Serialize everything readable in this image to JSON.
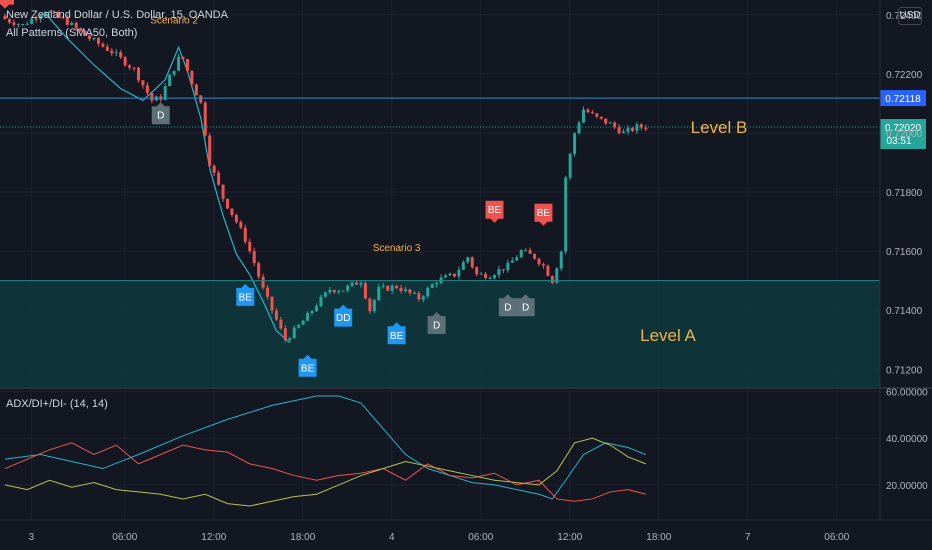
{
  "header": {
    "symbol": "New Zealand Dollar / U.S. Dollar, 15, OANDA",
    "indicator": "All Patterns (SMA50, Both)",
    "currency_button": "USD",
    "adx_label": "ADX/DI+/DI- (14, 14)"
  },
  "colors": {
    "background": "#131722",
    "up": "#26a69a",
    "down": "#ef5350",
    "zone": "#0e3a3e",
    "level_line": "#2a8fd4",
    "level_text": "#f0b44c",
    "bullish_marker": "#2196f3",
    "bearish_marker": "#ef5350",
    "doji_marker": "#5d7078"
  },
  "chart_data": [
    {
      "type": "candlestick",
      "title": "New Zealand Dollar / U.S. Dollar, 15, OANDA",
      "x_ticks": [
        "3",
        "06:00",
        "12:00",
        "18:00",
        "4",
        "06:00",
        "12:00",
        "18:00",
        "7",
        "06:00"
      ],
      "y_ticks": [
        "0.72400",
        "0.72200",
        "0.72000",
        "0.71800",
        "0.71600",
        "0.71400",
        "0.71200"
      ],
      "ylim": [
        0.7114,
        0.7245
      ],
      "grid": true,
      "path": [
        [
          0,
          0.72385
        ],
        [
          4,
          0.72365
        ],
        [
          9,
          0.72415
        ],
        [
          14,
          0.72375
        ],
        [
          19,
          0.7232
        ],
        [
          24,
          0.72275
        ],
        [
          29,
          0.72215
        ],
        [
          33,
          0.7211
        ],
        [
          35,
          0.7212
        ],
        [
          37,
          0.7219
        ],
        [
          39,
          0.7225
        ],
        [
          40,
          0.7225
        ],
        [
          42,
          0.7217
        ],
        [
          44,
          0.721
        ],
        [
          46,
          0.719
        ],
        [
          49,
          0.7178
        ],
        [
          52,
          0.717
        ],
        [
          54,
          0.7164
        ],
        [
          56,
          0.7156
        ],
        [
          58,
          0.7147
        ],
        [
          60,
          0.714
        ],
        [
          63,
          0.713
        ],
        [
          65,
          0.7133
        ],
        [
          68,
          0.7138
        ],
        [
          70,
          0.7142
        ],
        [
          73,
          0.7147
        ],
        [
          76,
          0.7147
        ],
        [
          80,
          0.715
        ],
        [
          82,
          0.714
        ],
        [
          84,
          0.7147
        ],
        [
          88,
          0.7148
        ],
        [
          93,
          0.7144
        ],
        [
          97,
          0.715
        ],
        [
          101,
          0.7152
        ],
        [
          104,
          0.7158
        ],
        [
          106,
          0.7152
        ],
        [
          109,
          0.7152
        ],
        [
          113,
          0.7155
        ],
        [
          116,
          0.716
        ],
        [
          119,
          0.7158
        ],
        [
          121,
          0.7155
        ],
        [
          123,
          0.715
        ],
        [
          125,
          0.716
        ],
        [
          126,
          0.7185
        ],
        [
          128,
          0.72
        ],
        [
          130,
          0.7208
        ],
        [
          133,
          0.7205
        ],
        [
          136,
          0.7203
        ],
        [
          139,
          0.72
        ],
        [
          142,
          0.7202
        ],
        [
          144,
          0.7202
        ]
      ],
      "sma_line": [
        [
          9,
          0.72405
        ],
        [
          14,
          0.7232
        ],
        [
          20,
          0.7223
        ],
        [
          26,
          0.7215
        ],
        [
          31,
          0.7211
        ],
        [
          36,
          0.7218
        ],
        [
          39,
          0.7229
        ],
        [
          41,
          0.7221
        ],
        [
          44,
          0.7205
        ],
        [
          46,
          0.7188
        ],
        [
          49,
          0.7172
        ],
        [
          52,
          0.7159
        ],
        [
          55,
          0.7152
        ],
        [
          58,
          0.7143
        ],
        [
          61,
          0.7133
        ],
        [
          64,
          0.7129
        ]
      ],
      "levels": [
        {
          "label": "Level B",
          "price": 0.72118,
          "price_label": "0.72118"
        }
      ],
      "zone": {
        "label": "Level A",
        "from": 0.7114,
        "to": 0.715
      },
      "current": {
        "price_label": "0.72020",
        "countdown": "03:51",
        "price": 0.7202
      },
      "annotations": [
        {
          "text": "Scenario 2",
          "x": 38,
          "y": 0.7237
        },
        {
          "text": "Scenario 3",
          "x": 88,
          "y": 0.716
        }
      ],
      "markers": [
        {
          "text": "E",
          "kind": "bearish",
          "x": 0,
          "y": 0.72465
        },
        {
          "text": "D",
          "kind": "doji",
          "x": 35,
          "y": 0.7206
        },
        {
          "text": "BE",
          "kind": "bullish",
          "x": 54,
          "y": 0.71445
        },
        {
          "text": "BE",
          "kind": "bullish",
          "x": 68,
          "y": 0.71205
        },
        {
          "text": "DD",
          "kind": "bullish",
          "x": 76,
          "y": 0.71375
        },
        {
          "text": "BE",
          "kind": "bullish",
          "x": 88,
          "y": 0.71315
        },
        {
          "text": "D",
          "kind": "doji",
          "x": 97,
          "y": 0.7135
        },
        {
          "text": "D",
          "kind": "doji",
          "x": 113,
          "y": 0.7141
        },
        {
          "text": "D",
          "kind": "doji",
          "x": 117,
          "y": 0.7141
        },
        {
          "text": "BE",
          "kind": "bearish",
          "x": 110,
          "y": 0.7174
        },
        {
          "text": "BE",
          "kind": "bearish",
          "x": 121,
          "y": 0.7173
        }
      ]
    },
    {
      "type": "line",
      "title": "ADX/DI+/DI- (14, 14)",
      "y_ticks": [
        "60.00000",
        "40.00000",
        "20.00000"
      ],
      "ylim": [
        5,
        61
      ],
      "grid": true,
      "series": [
        {
          "color": "#26b5c9",
          "values": [
            [
              0,
              31
            ],
            [
              8,
              33
            ],
            [
              15,
              30
            ],
            [
              22,
              27
            ],
            [
              30,
              33
            ],
            [
              40,
              41
            ],
            [
              50,
              48
            ],
            [
              60,
              54
            ],
            [
              70,
              58
            ],
            [
              75,
              58
            ],
            [
              80,
              55
            ],
            [
              85,
              44
            ],
            [
              90,
              33
            ],
            [
              95,
              27
            ],
            [
              100,
              24
            ],
            [
              105,
              21
            ],
            [
              110,
              20
            ],
            [
              115,
              18
            ],
            [
              120,
              16
            ],
            [
              123,
              14
            ],
            [
              126,
              22
            ],
            [
              130,
              33
            ],
            [
              135,
              38
            ],
            [
              140,
              36
            ],
            [
              144,
              33
            ]
          ]
        },
        {
          "color": "#ef5350",
          "values": [
            [
              0,
              27
            ],
            [
              5,
              31
            ],
            [
              10,
              35
            ],
            [
              15,
              38
            ],
            [
              20,
              33
            ],
            [
              25,
              37
            ],
            [
              30,
              29
            ],
            [
              35,
              33
            ],
            [
              40,
              37
            ],
            [
              45,
              35
            ],
            [
              50,
              34
            ],
            [
              55,
              29
            ],
            [
              60,
              27
            ],
            [
              65,
              24
            ],
            [
              70,
              22
            ],
            [
              75,
              24
            ],
            [
              80,
              25
            ],
            [
              85,
              27
            ],
            [
              90,
              22
            ],
            [
              95,
              29
            ],
            [
              100,
              24
            ],
            [
              105,
              23
            ],
            [
              110,
              25
            ],
            [
              115,
              20
            ],
            [
              120,
              22
            ],
            [
              124,
              14
            ],
            [
              128,
              13
            ],
            [
              132,
              14
            ],
            [
              136,
              17
            ],
            [
              140,
              18
            ],
            [
              144,
              16
            ]
          ]
        },
        {
          "color": "#b8c34a",
          "values": [
            [
              0,
              20
            ],
            [
              5,
              18
            ],
            [
              10,
              22
            ],
            [
              15,
              19
            ],
            [
              20,
              21
            ],
            [
              25,
              18
            ],
            [
              30,
              17
            ],
            [
              35,
              16
            ],
            [
              40,
              14
            ],
            [
              45,
              16
            ],
            [
              50,
              12
            ],
            [
              55,
              11
            ],
            [
              60,
              13
            ],
            [
              65,
              15
            ],
            [
              70,
              16
            ],
            [
              75,
              20
            ],
            [
              80,
              24
            ],
            [
              85,
              27
            ],
            [
              90,
              30
            ],
            [
              95,
              28
            ],
            [
              100,
              26
            ],
            [
              105,
              24
            ],
            [
              110,
              22
            ],
            [
              115,
              21
            ],
            [
              120,
              20
            ],
            [
              124,
              26
            ],
            [
              128,
              38
            ],
            [
              132,
              40
            ],
            [
              136,
              37
            ],
            [
              140,
              32
            ],
            [
              144,
              29
            ]
          ]
        }
      ]
    }
  ]
}
